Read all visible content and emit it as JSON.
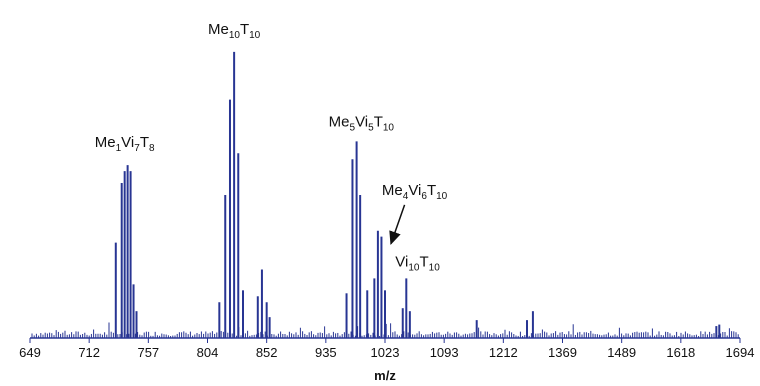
{
  "chart_data": {
    "type": "bar",
    "xlabel": "m/z",
    "ylabel": "",
    "tick_labels": [
      "649",
      "712",
      "757",
      "804",
      "852",
      "935",
      "1023",
      "1093",
      "1212",
      "1369",
      "1489",
      "1618",
      "1694"
    ],
    "colors": {
      "bars": "#283593",
      "axis": "#283593",
      "text": "#111111"
    },
    "peaks": [
      {
        "tick_pos": 1.45,
        "value": 0.32
      },
      {
        "tick_pos": 1.55,
        "value": 0.52
      },
      {
        "tick_pos": 1.6,
        "value": 0.56
      },
      {
        "tick_pos": 1.65,
        "value": 0.58
      },
      {
        "tick_pos": 1.7,
        "value": 0.56
      },
      {
        "tick_pos": 1.75,
        "value": 0.18
      },
      {
        "tick_pos": 1.8,
        "value": 0.09
      },
      {
        "tick_pos": 3.2,
        "value": 0.12
      },
      {
        "tick_pos": 3.3,
        "value": 0.48
      },
      {
        "tick_pos": 3.38,
        "value": 0.8
      },
      {
        "tick_pos": 3.45,
        "value": 0.96
      },
      {
        "tick_pos": 3.52,
        "value": 0.62
      },
      {
        "tick_pos": 3.6,
        "value": 0.16
      },
      {
        "tick_pos": 3.85,
        "value": 0.14
      },
      {
        "tick_pos": 3.92,
        "value": 0.23
      },
      {
        "tick_pos": 4.0,
        "value": 0.12
      },
      {
        "tick_pos": 4.05,
        "value": 0.07
      },
      {
        "tick_pos": 5.35,
        "value": 0.15
      },
      {
        "tick_pos": 5.45,
        "value": 0.6
      },
      {
        "tick_pos": 5.52,
        "value": 0.66
      },
      {
        "tick_pos": 5.58,
        "value": 0.48
      },
      {
        "tick_pos": 5.7,
        "value": 0.16
      },
      {
        "tick_pos": 5.82,
        "value": 0.2
      },
      {
        "tick_pos": 5.88,
        "value": 0.36
      },
      {
        "tick_pos": 5.94,
        "value": 0.34
      },
      {
        "tick_pos": 6.0,
        "value": 0.16
      },
      {
        "tick_pos": 6.3,
        "value": 0.1
      },
      {
        "tick_pos": 6.36,
        "value": 0.2
      },
      {
        "tick_pos": 6.42,
        "value": 0.09
      },
      {
        "tick_pos": 7.55,
        "value": 0.06
      },
      {
        "tick_pos": 8.4,
        "value": 0.06
      },
      {
        "tick_pos": 8.5,
        "value": 0.09
      },
      {
        "tick_pos": 11.6,
        "value": 0.04
      },
      {
        "tick_pos": 11.65,
        "value": 0.045
      },
      {
        "tick_pos": 12.55,
        "value": 0.035
      },
      {
        "tick_pos": 12.6,
        "value": 0.045
      },
      {
        "tick_pos": 12.65,
        "value": 0.04
      }
    ],
    "annotations": [
      {
        "base": "Me",
        "sub1": "1",
        "mid": "Vi",
        "sub2": "7",
        "tail": "T",
        "sub3": "8",
        "tick_pos": 1.6,
        "value": 0.62
      },
      {
        "base": "Me",
        "sub1": "10",
        "mid": "T",
        "sub2": "10",
        "tick_pos": 3.45,
        "value": 1.0
      },
      {
        "base": "Me",
        "sub1": "5",
        "mid": "Vi",
        "sub2": "5",
        "tail": "T",
        "sub3": "10",
        "tick_pos": 5.6,
        "value": 0.69
      },
      {
        "base": "Me",
        "sub1": "4",
        "mid": "Vi",
        "sub2": "6",
        "tail": "T",
        "sub3": "10",
        "tick_pos": 6.5,
        "value": 0.46,
        "arrow_to": {
          "tick_pos": 6.0,
          "value": 0.31
        }
      },
      {
        "base": "Vi",
        "sub1": "10",
        "mid": "T",
        "sub2": "10",
        "tick_pos": 6.55,
        "value": 0.22
      }
    ]
  }
}
